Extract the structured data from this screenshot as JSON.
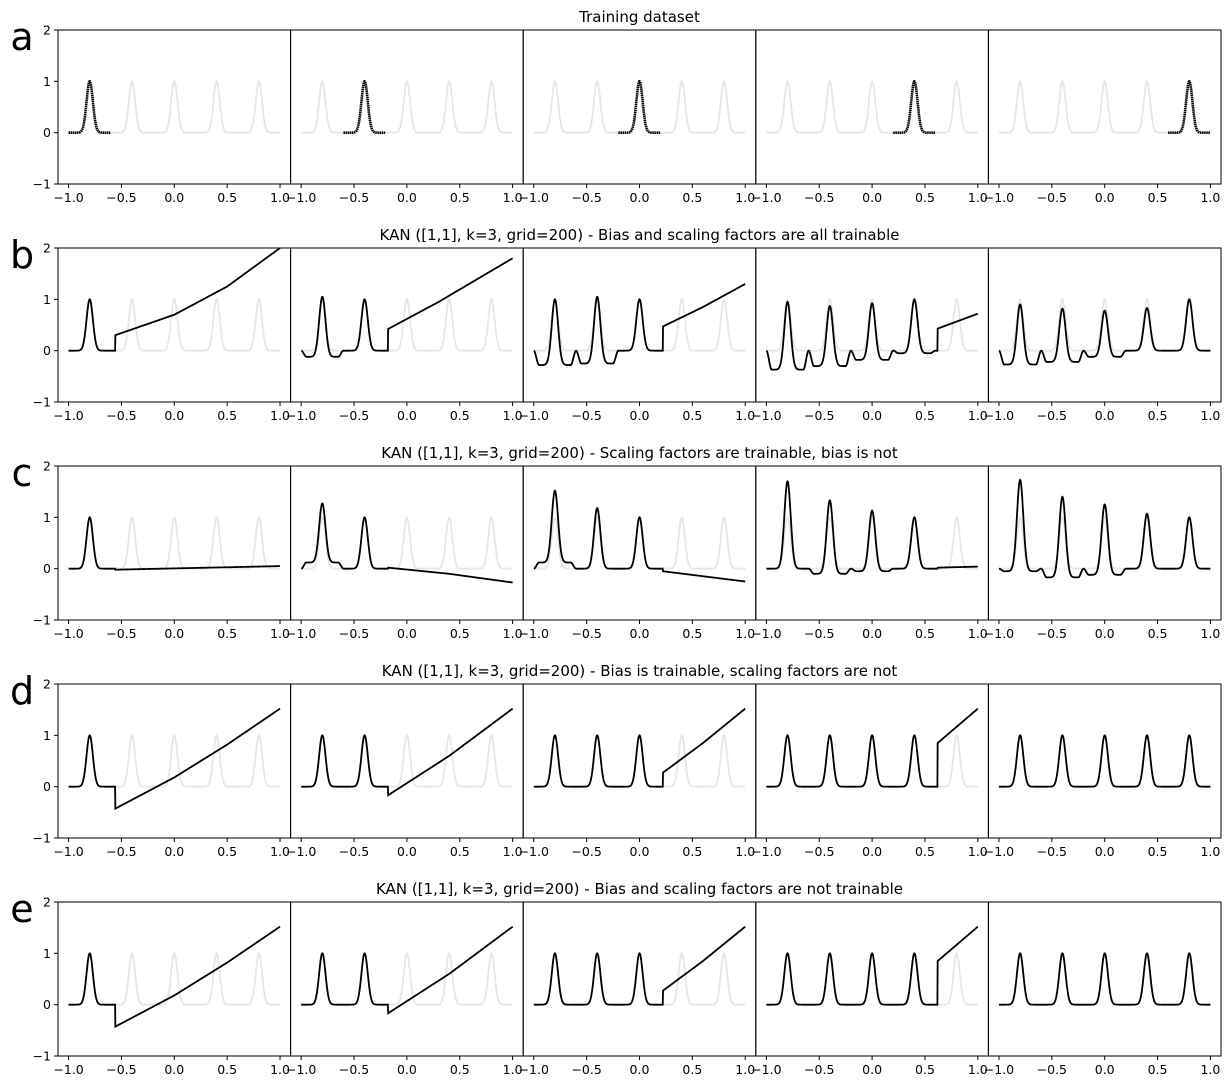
{
  "chart_data": {
    "type": "line",
    "xlim": [
      -1.1,
      1.1
    ],
    "ylim": [
      -1,
      2
    ],
    "x_ticks": [
      "−1.0",
      "−0.5",
      "0.0",
      "0.5",
      "1.0"
    ],
    "y_ticks": [
      "−1",
      "0",
      "1",
      "2"
    ],
    "panels_per_row": 5,
    "grid": false,
    "background_series": {
      "description": "full target: five gaussian peaks (light gray)",
      "peak_centers": [
        -0.8,
        -0.4,
        0.0,
        0.4,
        0.8
      ],
      "peak_height": 1.0,
      "x_range": [
        -1.0,
        1.0
      ],
      "color": "#e6e6e6"
    },
    "rows": [
      {
        "letter": "a",
        "title": "Training dataset",
        "kind": "training",
        "panels": [
          {
            "peak": -0.8,
            "x_range": [
              -1.0,
              -0.6
            ]
          },
          {
            "peak": -0.4,
            "x_range": [
              -0.6,
              -0.2
            ]
          },
          {
            "peak": 0.0,
            "x_range": [
              -0.2,
              0.2
            ]
          },
          {
            "peak": 0.4,
            "x_range": [
              0.2,
              0.6
            ]
          },
          {
            "peak": 0.8,
            "x_range": [
              0.6,
              1.0
            ]
          }
        ]
      },
      {
        "letter": "b",
        "title": "KAN ([1,1], k=3, grid=200) - Bias and scaling factors are all trainable",
        "panels": [
          {
            "peaks": [
              [
                -0.8,
                1.0
              ]
            ],
            "dips": [],
            "cut": -0.56,
            "tail": [
              [
                -0.56,
                0.3
              ],
              [
                0.0,
                0.7
              ],
              [
                0.5,
                1.25
              ],
              [
                1.0,
                2.0
              ]
            ]
          },
          {
            "peaks": [
              [
                -0.8,
                1.05
              ],
              [
                -0.4,
                1.0
              ]
            ],
            "dips": [
              [
                -1.0,
                -0.6,
                -0.12
              ]
            ],
            "cut": -0.18,
            "tail": [
              [
                -0.18,
                0.42
              ],
              [
                0.3,
                0.95
              ],
              [
                1.0,
                1.8
              ]
            ]
          },
          {
            "peaks": [
              [
                -0.8,
                1.0
              ],
              [
                -0.4,
                1.05
              ],
              [
                0.0,
                1.0
              ]
            ],
            "dips": [
              [
                -1.0,
                -0.6,
                -0.28
              ],
              [
                -0.6,
                -0.2,
                -0.25
              ]
            ],
            "cut": 0.22,
            "tail": [
              [
                0.22,
                0.47
              ],
              [
                0.6,
                0.85
              ],
              [
                1.0,
                1.3
              ]
            ]
          },
          {
            "peaks": [
              [
                -0.8,
                0.95
              ],
              [
                -0.4,
                0.87
              ],
              [
                0.0,
                0.92
              ],
              [
                0.4,
                1.0
              ]
            ],
            "dips": [
              [
                -1.0,
                -0.6,
                -0.37
              ],
              [
                -0.6,
                -0.2,
                -0.3
              ],
              [
                -0.2,
                0.2,
                -0.18
              ],
              [
                0.2,
                0.6,
                -0.05
              ]
            ],
            "cut": 0.62,
            "tail": [
              [
                0.62,
                0.43
              ],
              [
                1.0,
                0.72
              ]
            ]
          },
          {
            "peaks": [
              [
                -0.8,
                0.9
              ],
              [
                -0.4,
                0.82
              ],
              [
                0.0,
                0.78
              ],
              [
                0.4,
                0.83
              ],
              [
                0.8,
                1.0
              ]
            ],
            "dips": [
              [
                -1.0,
                -0.6,
                -0.27
              ],
              [
                -0.6,
                -0.2,
                -0.22
              ],
              [
                -0.2,
                0.2,
                -0.12
              ],
              [
                0.2,
                0.6,
                0.0
              ],
              [
                0.6,
                1.0,
                0.0
              ]
            ],
            "cut": null,
            "tail": []
          }
        ]
      },
      {
        "letter": "c",
        "title": "KAN ([1,1], k=3, grid=200) - Scaling factors are trainable, bias is not",
        "panels": [
          {
            "peaks": [
              [
                -0.8,
                1.0
              ]
            ],
            "dips": [],
            "cut": -0.56,
            "tail": [
              [
                -0.56,
                -0.02
              ],
              [
                1.0,
                0.05
              ]
            ]
          },
          {
            "peaks": [
              [
                -0.8,
                1.27
              ],
              [
                -0.4,
                1.0
              ]
            ],
            "dips": [
              [
                -1.0,
                -0.6,
                0.12
              ]
            ],
            "cut": -0.18,
            "tail": [
              [
                -0.18,
                0.02
              ],
              [
                0.4,
                -0.1
              ],
              [
                1.0,
                -0.27
              ]
            ]
          },
          {
            "peaks": [
              [
                -0.8,
                1.52
              ],
              [
                -0.4,
                1.18
              ],
              [
                0.0,
                1.0
              ]
            ],
            "dips": [
              [
                -1.0,
                -0.6,
                0.12
              ],
              [
                -0.6,
                -0.2,
                0.0
              ]
            ],
            "cut": 0.22,
            "tail": [
              [
                0.22,
                -0.05
              ],
              [
                1.0,
                -0.25
              ]
            ]
          },
          {
            "peaks": [
              [
                -0.8,
                1.7
              ],
              [
                -0.4,
                1.33
              ],
              [
                0.0,
                1.13
              ],
              [
                0.4,
                1.0
              ]
            ],
            "dips": [
              [
                -1.0,
                -0.6,
                0.0
              ],
              [
                -0.6,
                -0.2,
                -0.1
              ],
              [
                -0.2,
                0.2,
                -0.05
              ],
              [
                0.2,
                0.6,
                0.0
              ]
            ],
            "cut": 0.62,
            "tail": [
              [
                0.62,
                0.02
              ],
              [
                1.0,
                0.04
              ]
            ]
          },
          {
            "peaks": [
              [
                -0.8,
                1.73
              ],
              [
                -0.4,
                1.4
              ],
              [
                0.0,
                1.25
              ],
              [
                0.4,
                1.07
              ],
              [
                0.8,
                1.0
              ]
            ],
            "dips": [
              [
                -1.0,
                -0.6,
                -0.05
              ],
              [
                -0.6,
                -0.2,
                -0.17
              ],
              [
                -0.2,
                0.2,
                -0.12
              ],
              [
                0.2,
                0.6,
                0.0
              ],
              [
                0.6,
                1.0,
                0.0
              ]
            ],
            "cut": null,
            "tail": []
          }
        ]
      },
      {
        "letter": "d",
        "title": "KAN ([1,1], k=3, grid=200) - Bias is trainable, scaling factors are not",
        "panels": [
          {
            "peaks": [
              [
                -0.8,
                1.0
              ]
            ],
            "dips": [],
            "cut": -0.56,
            "tail": [
              [
                -0.56,
                -0.43
              ],
              [
                0.0,
                0.18
              ],
              [
                0.5,
                0.82
              ],
              [
                1.0,
                1.52
              ]
            ]
          },
          {
            "peaks": [
              [
                -0.8,
                1.0
              ],
              [
                -0.4,
                1.0
              ]
            ],
            "dips": [],
            "cut": -0.18,
            "tail": [
              [
                -0.18,
                -0.17
              ],
              [
                0.4,
                0.6
              ],
              [
                1.0,
                1.52
              ]
            ]
          },
          {
            "peaks": [
              [
                -0.8,
                1.0
              ],
              [
                -0.4,
                1.0
              ],
              [
                0.0,
                1.0
              ]
            ],
            "dips": [],
            "cut": 0.22,
            "tail": [
              [
                0.22,
                0.27
              ],
              [
                0.6,
                0.85
              ],
              [
                1.0,
                1.52
              ]
            ]
          },
          {
            "peaks": [
              [
                -0.8,
                1.0
              ],
              [
                -0.4,
                1.0
              ],
              [
                0.0,
                1.0
              ],
              [
                0.4,
                1.0
              ]
            ],
            "dips": [],
            "cut": 0.62,
            "tail": [
              [
                0.62,
                0.85
              ],
              [
                1.0,
                1.52
              ]
            ]
          },
          {
            "peaks": [
              [
                -0.8,
                1.0
              ],
              [
                -0.4,
                1.0
              ],
              [
                0.0,
                1.0
              ],
              [
                0.4,
                1.0
              ],
              [
                0.8,
                1.0
              ]
            ],
            "dips": [],
            "cut": null,
            "tail": []
          }
        ]
      },
      {
        "letter": "e",
        "title": "KAN ([1,1], k=3, grid=200) - Bias and scaling factors are not trainable",
        "panels": [
          {
            "peaks": [
              [
                -0.8,
                1.0
              ]
            ],
            "dips": [],
            "cut": -0.56,
            "tail": [
              [
                -0.56,
                -0.43
              ],
              [
                0.0,
                0.18
              ],
              [
                0.5,
                0.82
              ],
              [
                1.0,
                1.52
              ]
            ]
          },
          {
            "peaks": [
              [
                -0.8,
                1.0
              ],
              [
                -0.4,
                1.0
              ]
            ],
            "dips": [],
            "cut": -0.18,
            "tail": [
              [
                -0.18,
                -0.17
              ],
              [
                0.4,
                0.6
              ],
              [
                1.0,
                1.52
              ]
            ]
          },
          {
            "peaks": [
              [
                -0.8,
                1.0
              ],
              [
                -0.4,
                1.0
              ],
              [
                0.0,
                1.0
              ]
            ],
            "dips": [],
            "cut": 0.22,
            "tail": [
              [
                0.22,
                0.27
              ],
              [
                0.6,
                0.85
              ],
              [
                1.0,
                1.52
              ]
            ]
          },
          {
            "peaks": [
              [
                -0.8,
                1.0
              ],
              [
                -0.4,
                1.0
              ],
              [
                0.0,
                1.0
              ],
              [
                0.4,
                1.0
              ]
            ],
            "dips": [],
            "cut": 0.62,
            "tail": [
              [
                0.62,
                0.85
              ],
              [
                1.0,
                1.52
              ]
            ]
          },
          {
            "peaks": [
              [
                -0.8,
                1.0
              ],
              [
                -0.4,
                1.0
              ],
              [
                0.0,
                1.0
              ],
              [
                0.4,
                1.0
              ],
              [
                0.8,
                1.0
              ]
            ],
            "dips": [],
            "cut": null,
            "tail": []
          }
        ]
      }
    ]
  }
}
